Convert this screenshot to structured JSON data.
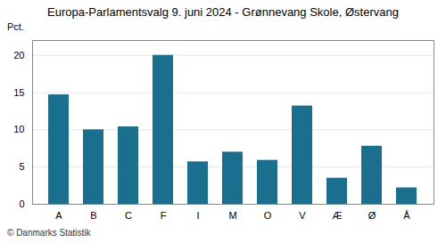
{
  "chart_data": {
    "type": "bar",
    "title": "Europa-Parlamentsvalg 9. juni 2024 - Grønnevang Skole, Østervang",
    "categories": [
      "A",
      "B",
      "C",
      "F",
      "I",
      "M",
      "O",
      "V",
      "Æ",
      "Ø",
      "Å"
    ],
    "values": [
      14.7,
      10.0,
      10.4,
      20.0,
      5.7,
      7.0,
      5.9,
      13.2,
      3.5,
      7.8,
      2.2
    ],
    "color": "#1a6e8e",
    "ylabel": "Pct.",
    "ylim": [
      0,
      22
    ],
    "yticks": [
      0,
      5,
      10,
      15,
      20
    ],
    "grid": true,
    "caption": "© Danmarks Statistik"
  }
}
